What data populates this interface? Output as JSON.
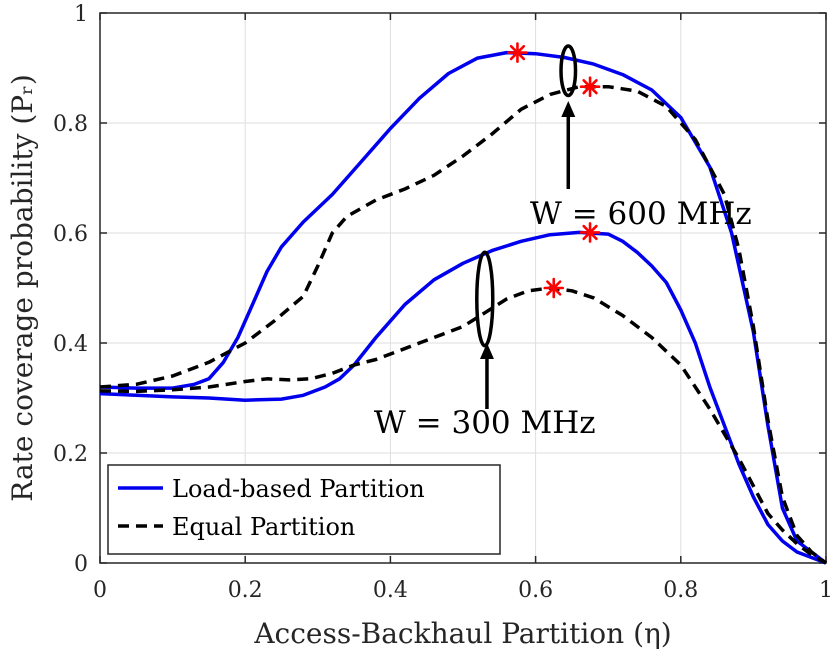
{
  "chart_data": {
    "type": "line",
    "title": "",
    "xlabel": "Access-Backhaul Partition (η)",
    "ylabel": "Rate coverage probability (Pᵣ)",
    "xlim": [
      0,
      1
    ],
    "ylim": [
      0,
      1
    ],
    "xticks": [
      "0",
      "0.2",
      "0.4",
      "0.6",
      "0.8",
      "1"
    ],
    "yticks": [
      "0",
      "0.2",
      "0.4",
      "0.6",
      "0.8",
      "1"
    ],
    "grid": true,
    "legend": {
      "placement": "bottom-left",
      "entries": [
        "Load-based Partition",
        "Equal Partition"
      ]
    },
    "series": [
      {
        "name": "Load-based Partition",
        "group": "W = 600 MHz",
        "color": "#0000ee",
        "style": "solid",
        "x": [
          0,
          0.05,
          0.1,
          0.13,
          0.15,
          0.17,
          0.19,
          0.21,
          0.23,
          0.25,
          0.28,
          0.32,
          0.36,
          0.4,
          0.44,
          0.48,
          0.52,
          0.56,
          0.6,
          0.64,
          0.68,
          0.72,
          0.76,
          0.8,
          0.84,
          0.87,
          0.9,
          0.92,
          0.94,
          0.96,
          0.98,
          1
        ],
        "y": [
          0.32,
          0.318,
          0.318,
          0.325,
          0.335,
          0.365,
          0.41,
          0.47,
          0.53,
          0.575,
          0.62,
          0.67,
          0.73,
          0.79,
          0.845,
          0.89,
          0.918,
          0.928,
          0.926,
          0.919,
          0.907,
          0.888,
          0.86,
          0.81,
          0.72,
          0.6,
          0.42,
          0.25,
          0.1,
          0.04,
          0.02,
          0
        ]
      },
      {
        "name": "Equal Partition",
        "group": "W = 600 MHz",
        "color": "#000000",
        "style": "dashed",
        "x": [
          0,
          0.05,
          0.1,
          0.15,
          0.2,
          0.24,
          0.28,
          0.3,
          0.32,
          0.34,
          0.38,
          0.42,
          0.46,
          0.5,
          0.54,
          0.58,
          0.62,
          0.66,
          0.7,
          0.74,
          0.78,
          0.82,
          0.86,
          0.88,
          0.9,
          0.92,
          0.94,
          0.96,
          0.98,
          1
        ],
        "y": [
          0.32,
          0.325,
          0.34,
          0.365,
          0.4,
          0.44,
          0.485,
          0.54,
          0.6,
          0.63,
          0.66,
          0.68,
          0.705,
          0.74,
          0.78,
          0.825,
          0.852,
          0.866,
          0.866,
          0.858,
          0.83,
          0.77,
          0.67,
          0.57,
          0.43,
          0.26,
          0.12,
          0.05,
          0.02,
          0
        ]
      },
      {
        "name": "Load-based Partition",
        "group": "W = 300 MHz",
        "color": "#0000ee",
        "style": "solid",
        "x": [
          0,
          0.05,
          0.1,
          0.15,
          0.2,
          0.25,
          0.28,
          0.31,
          0.33,
          0.35,
          0.38,
          0.42,
          0.46,
          0.5,
          0.54,
          0.58,
          0.62,
          0.66,
          0.7,
          0.72,
          0.74,
          0.76,
          0.78,
          0.8,
          0.82,
          0.84,
          0.86,
          0.88,
          0.9,
          0.92,
          0.94,
          0.96,
          0.98,
          1
        ],
        "y": [
          0.308,
          0.305,
          0.302,
          0.3,
          0.296,
          0.298,
          0.305,
          0.32,
          0.335,
          0.36,
          0.41,
          0.47,
          0.515,
          0.545,
          0.568,
          0.585,
          0.597,
          0.601,
          0.598,
          0.585,
          0.565,
          0.54,
          0.51,
          0.46,
          0.4,
          0.32,
          0.25,
          0.18,
          0.12,
          0.07,
          0.04,
          0.02,
          0.01,
          0
        ]
      },
      {
        "name": "Equal Partition",
        "group": "W = 300 MHz",
        "color": "#000000",
        "style": "dashed",
        "x": [
          0,
          0.05,
          0.1,
          0.15,
          0.2,
          0.23,
          0.26,
          0.29,
          0.32,
          0.35,
          0.38,
          0.41,
          0.44,
          0.47,
          0.5,
          0.53,
          0.56,
          0.59,
          0.62,
          0.65,
          0.68,
          0.72,
          0.76,
          0.8,
          0.84,
          0.88,
          0.9,
          0.92,
          0.94,
          0.96,
          0.98,
          1
        ],
        "y": [
          0.313,
          0.312,
          0.315,
          0.32,
          0.33,
          0.335,
          0.333,
          0.335,
          0.345,
          0.36,
          0.37,
          0.385,
          0.4,
          0.415,
          0.43,
          0.455,
          0.48,
          0.495,
          0.5,
          0.495,
          0.482,
          0.45,
          0.41,
          0.36,
          0.28,
          0.19,
          0.14,
          0.09,
          0.06,
          0.035,
          0.015,
          0
        ]
      }
    ],
    "optimum_markers": [
      {
        "group": "W = 600 MHz",
        "series": "Load-based Partition",
        "x": 0.575,
        "y": 0.928
      },
      {
        "group": "W = 600 MHz",
        "series": "Equal Partition",
        "x": 0.675,
        "y": 0.866
      },
      {
        "group": "W = 300 MHz",
        "series": "Load-based Partition",
        "x": 0.675,
        "y": 0.601
      },
      {
        "group": "W = 300 MHz",
        "series": "Equal Partition",
        "x": 0.625,
        "y": 0.5
      }
    ],
    "annotations": [
      {
        "text": "W = 600 MHz",
        "ellipse_center": [
          0.645,
          0.895
        ],
        "ellipse_radii": [
          0.01,
          0.045
        ],
        "arrow_from": [
          0.645,
          0.68
        ],
        "arrow_to": [
          0.645,
          0.84
        ],
        "label_pos": [
          0.745,
          0.635
        ]
      },
      {
        "text": "W = 300 MHz",
        "ellipse_center": [
          0.53,
          0.48
        ],
        "ellipse_radii": [
          0.011,
          0.085
        ],
        "arrow_from": [
          0.533,
          0.28
        ],
        "arrow_to": [
          0.533,
          0.4
        ],
        "label_pos": [
          0.53,
          0.255
        ]
      }
    ],
    "colors": {
      "load_based": "#0000ee",
      "equal": "#000000",
      "marker": "#ff0000",
      "grid": "#dedede"
    }
  }
}
